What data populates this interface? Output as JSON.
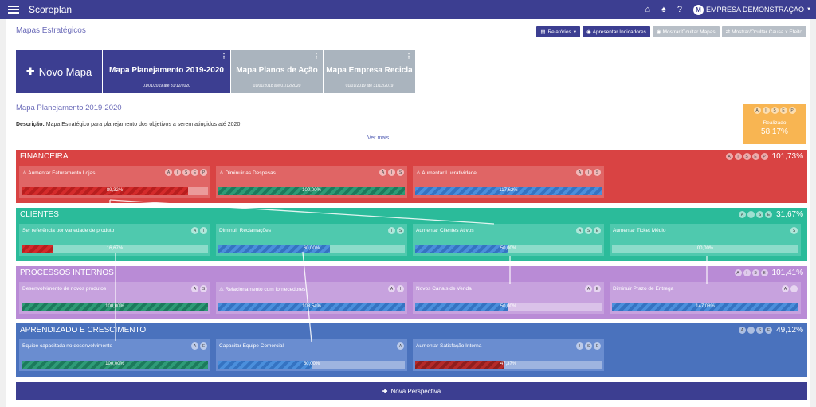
{
  "header": {
    "app_title": "Scoreplan",
    "company": "EMPRESA DEMONSTRAÇÃO",
    "avatar_letter": "M",
    "help_label": "?"
  },
  "page": {
    "title": "Mapas Estratégicos"
  },
  "toolbar": {
    "reports": "Relatórios",
    "present": "Apresentar Indicadores",
    "toggle_maps": "Mostrar/Ocultar Mapas",
    "toggle_cause": "Mostrar/Ocultar Causa x Efeito"
  },
  "maps": {
    "new_label": "Novo Mapa",
    "cards": [
      {
        "name": "Mapa Planejamento 2019-2020",
        "dates": "01/01/2019 até 31/12/2020"
      },
      {
        "name": "Mapa Planos de Ação",
        "dates": "01/01/2018 até 01/12/2020"
      },
      {
        "name": "Mapa Empresa Recicla",
        "dates": "01/01/2019 até 31/12/2019"
      }
    ]
  },
  "current_map": {
    "title": "Mapa Planejamento 2019-2020",
    "desc_label": "Descrição:",
    "desc_text": " Mapa Estratégico para planejamento dos objetivos a serem atingidos até 2020",
    "see_more": "Ver mais",
    "result_label": "Realizado",
    "result_value": "58,17%"
  },
  "chip_letters": {
    "a": "A",
    "i": "I",
    "s": "S",
    "e": "E",
    "p": "P"
  },
  "perspectives": [
    {
      "name": "FINANCEIRA",
      "pct": "101,73%",
      "color": "#d94343",
      "obj_color": "#e06565",
      "objectives": [
        {
          "title": "⚠ Aumentar Faturamento Lojas",
          "value": "89,32%",
          "fill": 0.8932,
          "style": "red"
        },
        {
          "title": "⚠ Diminuir as Despesas",
          "value": "100,00%",
          "fill": 1.0,
          "style": "green"
        },
        {
          "title": "⚠ Aumentar Lucratividade",
          "value": "117,62%",
          "fill": 1.0,
          "style": "blue"
        }
      ]
    },
    {
      "name": "CLIENTES",
      "pct": "31,67%",
      "color": "#2bbb9a",
      "obj_color": "#4fc9ae",
      "objectives": [
        {
          "title": "Ser referência por variedade de produto",
          "value": "16,67%",
          "fill": 0.1667,
          "style": "red"
        },
        {
          "title": "Diminuir Reclamações",
          "value": "60,00%",
          "fill": 0.6,
          "style": "blue"
        },
        {
          "title": "Aumentar Clientes Ativos",
          "value": "50,00%",
          "fill": 0.5,
          "style": "blue"
        },
        {
          "title": "Aumentar Ticket Médio",
          "value": "00,00%",
          "fill": 0,
          "style": "blue"
        }
      ]
    },
    {
      "name": "PROCESSOS INTERNOS",
      "pct": "101,41%",
      "color": "#b98bd6",
      "obj_color": "#c7a2de",
      "objectives": [
        {
          "title": "Desenvolvimento de novos produtos",
          "value": "100,00%",
          "fill": 1.0,
          "style": "green"
        },
        {
          "title": "⚠ Relacionamento com fornecedores",
          "value": "108,54%",
          "fill": 1.0,
          "style": "blue"
        },
        {
          "title": "Novos Canais de Venda",
          "value": "50,00%",
          "fill": 0.5,
          "style": "blue"
        },
        {
          "title": "Diminuir Prazo de Entrega",
          "value": "147,08%",
          "fill": 1.0,
          "style": "blue"
        }
      ]
    },
    {
      "name": "APRENDIZADO E CRESCIMENTO",
      "pct": "49,12%",
      "color": "#4a72bd",
      "obj_color": "#6a8dd0",
      "objectives": [
        {
          "title": "Equipe capacitada no desenvolvimento",
          "value": "100,00%",
          "fill": 1.0,
          "style": "green"
        },
        {
          "title": "Capacitar Equipe Comercial",
          "value": "50,00%",
          "fill": 0.5,
          "style": "blue"
        },
        {
          "title": "Aumentar Satisfação Interna",
          "value": "47,37%",
          "fill": 0.4737,
          "style": "dred"
        }
      ]
    }
  ],
  "new_perspective": "Nova Perspectiva"
}
